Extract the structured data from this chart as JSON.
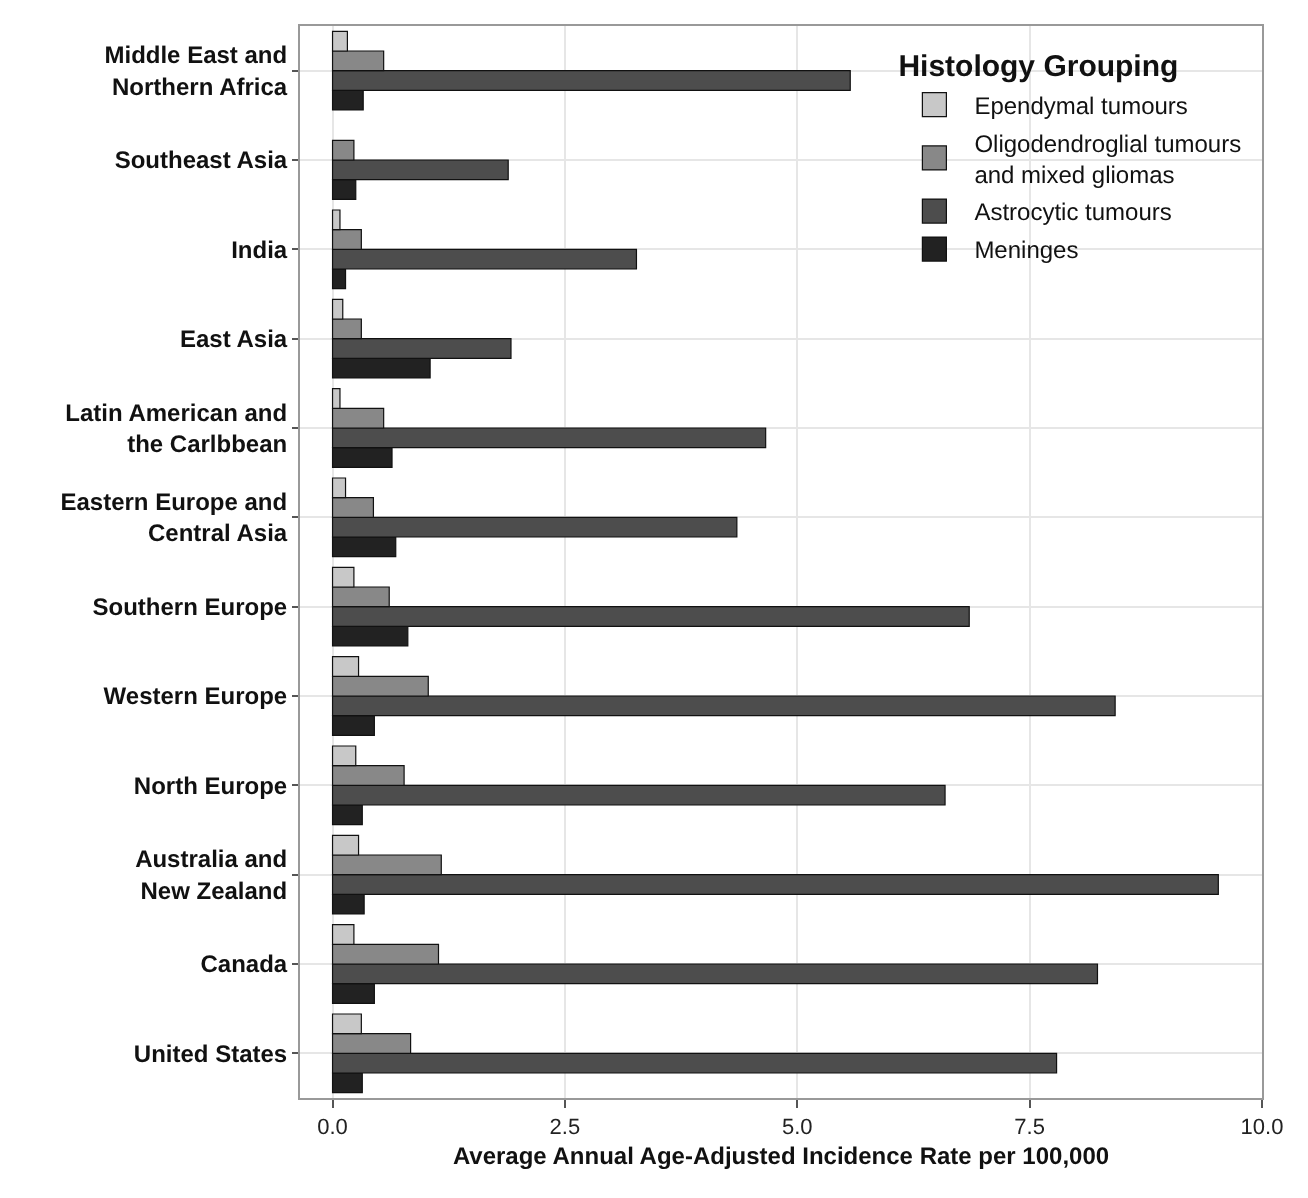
{
  "chart_data": {
    "type": "bar",
    "orientation": "horizontal",
    "categories": [
      "Middle East and\nNorthern Africa",
      "Southeast Asia",
      "India",
      "East Asia",
      "Latin American and\nthe Carlbbean",
      "Eastern Europe and\nCentral Asia",
      "Southern Europe",
      "Western Europe",
      "North Europe",
      "Australia and\nNew Zealand",
      "Canada",
      "United States"
    ],
    "series": [
      {
        "name": "Meninges",
        "color": "#222222",
        "values": [
          0.33,
          0.25,
          0.14,
          1.05,
          0.64,
          0.68,
          0.81,
          0.45,
          0.32,
          0.34,
          0.45,
          0.32
        ]
      },
      {
        "name": "Astrocytic tumours",
        "color": "#4d4d4d",
        "values": [
          5.57,
          1.89,
          3.27,
          1.92,
          4.66,
          4.35,
          6.85,
          8.42,
          6.59,
          9.53,
          8.23,
          7.79
        ]
      },
      {
        "name": "Oligodendroglial tumours\nand mixed gliomas",
        "color": "#888888",
        "values": [
          0.55,
          0.23,
          0.31,
          0.31,
          0.55,
          0.44,
          0.61,
          1.03,
          0.77,
          1.17,
          1.14,
          0.84
        ]
      },
      {
        "name": "Ependymal tumours",
        "color": "#c8c8c8",
        "values": [
          0.16,
          null,
          0.08,
          0.11,
          0.08,
          0.14,
          0.23,
          0.28,
          0.25,
          0.28,
          0.23,
          0.31
        ]
      }
    ],
    "xlabel": "Average Annual Age-Adjusted Incidence Rate per 100,000",
    "legend_title": "Histology Grouping",
    "xlim": [
      -0.35,
      10.0
    ],
    "xticks": [
      {
        "value": 0,
        "label": "0.0"
      },
      2.5,
      {
        "value": 5,
        "label": "5.0"
      },
      7.5,
      {
        "value": 10,
        "label": "10.0"
      }
    ],
    "grid": true,
    "legend": "top right"
  }
}
